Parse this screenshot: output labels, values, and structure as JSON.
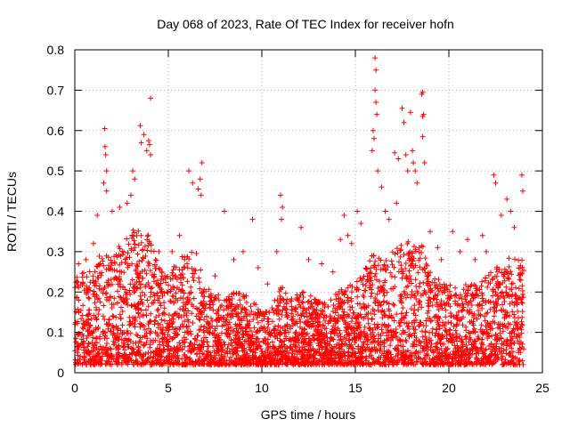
{
  "chart_data": {
    "type": "scatter",
    "title": "Day 068 of 2023, Rate Of TEC Index for receiver hofn",
    "xlabel": "GPS time / hours",
    "ylabel": "ROTI / TECUs",
    "xlim": [
      0,
      25
    ],
    "ylim": [
      0,
      0.8
    ],
    "x_ticks": [
      0,
      5,
      10,
      15,
      20,
      25
    ],
    "x_tick_labels": [
      "0",
      "5",
      "10",
      "15",
      "20",
      "25"
    ],
    "y_ticks": [
      0,
      0.1,
      0.2,
      0.3,
      0.4,
      0.5,
      0.6,
      0.7,
      0.8
    ],
    "y_tick_labels": [
      "0",
      "0.1",
      "0.2",
      "0.3",
      "0.4",
      "0.5",
      "0.6",
      "0.7",
      "0.8"
    ],
    "grid": true,
    "marker": "+",
    "color": "#ff0000",
    "points": [
      [
        1.6,
        0.605
      ],
      [
        1.62,
        0.56
      ],
      [
        1.65,
        0.54
      ],
      [
        1.7,
        0.5
      ],
      [
        1.55,
        0.47
      ],
      [
        1.7,
        0.45
      ],
      [
        3.5,
        0.612
      ],
      [
        3.7,
        0.59
      ],
      [
        3.55,
        0.57
      ],
      [
        3.85,
        0.55
      ],
      [
        3.95,
        0.575
      ],
      [
        4.05,
        0.68
      ],
      [
        4.0,
        0.565
      ],
      [
        4.05,
        0.54
      ],
      [
        3.1,
        0.5
      ],
      [
        3.2,
        0.48
      ],
      [
        3.0,
        0.44
      ],
      [
        6.1,
        0.5
      ],
      [
        6.3,
        0.47
      ],
      [
        6.6,
        0.455
      ],
      [
        6.7,
        0.48
      ],
      [
        6.8,
        0.52
      ],
      [
        6.75,
        0.44
      ],
      [
        8.0,
        0.4
      ],
      [
        9.5,
        0.38
      ],
      [
        11.0,
        0.44
      ],
      [
        11.1,
        0.41
      ],
      [
        11.05,
        0.38
      ],
      [
        12.1,
        0.36
      ],
      [
        13.2,
        0.27
      ],
      [
        14.4,
        0.39
      ],
      [
        14.6,
        0.34
      ],
      [
        15.1,
        0.4
      ],
      [
        15.3,
        0.37
      ],
      [
        15.9,
        0.55
      ],
      [
        15.95,
        0.6
      ],
      [
        16.0,
        0.58
      ],
      [
        16.05,
        0.78
      ],
      [
        16.1,
        0.75
      ],
      [
        16.05,
        0.7
      ],
      [
        16.1,
        0.67
      ],
      [
        16.15,
        0.64
      ],
      [
        16.2,
        0.5
      ],
      [
        16.4,
        0.46
      ],
      [
        16.6,
        0.4
      ],
      [
        17.1,
        0.545
      ],
      [
        17.3,
        0.53
      ],
      [
        17.5,
        0.655
      ],
      [
        17.6,
        0.62
      ],
      [
        17.7,
        0.54
      ],
      [
        17.8,
        0.5
      ],
      [
        17.95,
        0.645
      ],
      [
        18.05,
        0.55
      ],
      [
        18.1,
        0.52
      ],
      [
        18.2,
        0.5
      ],
      [
        18.3,
        0.47
      ],
      [
        18.55,
        0.69
      ],
      [
        18.6,
        0.695
      ],
      [
        18.6,
        0.635
      ],
      [
        18.65,
        0.64
      ],
      [
        18.6,
        0.585
      ],
      [
        18.7,
        0.52
      ],
      [
        19.0,
        0.35
      ],
      [
        19.4,
        0.31
      ],
      [
        20.2,
        0.35
      ],
      [
        21.0,
        0.33
      ],
      [
        21.8,
        0.34
      ],
      [
        22.4,
        0.49
      ],
      [
        22.5,
        0.47
      ],
      [
        23.1,
        0.43
      ],
      [
        23.3,
        0.4
      ],
      [
        23.9,
        0.49
      ],
      [
        23.95,
        0.45
      ],
      [
        0.2,
        0.27
      ],
      [
        0.6,
        0.28
      ],
      [
        1.0,
        0.32
      ],
      [
        1.2,
        0.39
      ],
      [
        2.0,
        0.4
      ],
      [
        2.4,
        0.41
      ],
      [
        2.8,
        0.42
      ],
      [
        4.5,
        0.3
      ],
      [
        5.2,
        0.3
      ],
      [
        5.6,
        0.34
      ],
      [
        7.5,
        0.24
      ],
      [
        8.5,
        0.28
      ],
      [
        9.0,
        0.3
      ],
      [
        9.8,
        0.26
      ],
      [
        10.3,
        0.22
      ],
      [
        10.8,
        0.3
      ],
      [
        12.5,
        0.28
      ],
      [
        13.8,
        0.25
      ],
      [
        14.2,
        0.33
      ],
      [
        14.8,
        0.32
      ],
      [
        16.8,
        0.38
      ],
      [
        17.2,
        0.42
      ],
      [
        19.6,
        0.28
      ],
      [
        20.6,
        0.3
      ],
      [
        21.4,
        0.28
      ],
      [
        22.0,
        0.3
      ],
      [
        22.8,
        0.39
      ],
      [
        23.5,
        0.36
      ]
    ],
    "dense_envelope": [
      [
        0.0,
        0.23
      ],
      [
        0.5,
        0.26
      ],
      [
        1.0,
        0.27
      ],
      [
        1.5,
        0.3
      ],
      [
        2.0,
        0.3
      ],
      [
        2.5,
        0.32
      ],
      [
        3.0,
        0.36
      ],
      [
        3.5,
        0.35
      ],
      [
        4.0,
        0.34
      ],
      [
        4.5,
        0.26
      ],
      [
        5.0,
        0.24
      ],
      [
        5.5,
        0.28
      ],
      [
        6.0,
        0.3
      ],
      [
        6.5,
        0.3
      ],
      [
        7.0,
        0.22
      ],
      [
        7.5,
        0.2
      ],
      [
        8.0,
        0.18
      ],
      [
        8.5,
        0.2
      ],
      [
        9.0,
        0.2
      ],
      [
        9.5,
        0.18
      ],
      [
        10.0,
        0.15
      ],
      [
        10.5,
        0.16
      ],
      [
        11.0,
        0.22
      ],
      [
        11.5,
        0.18
      ],
      [
        12.0,
        0.2
      ],
      [
        12.5,
        0.2
      ],
      [
        13.0,
        0.18
      ],
      [
        13.5,
        0.17
      ],
      [
        14.0,
        0.2
      ],
      [
        14.5,
        0.22
      ],
      [
        15.0,
        0.22
      ],
      [
        15.5,
        0.26
      ],
      [
        16.0,
        0.3
      ],
      [
        16.5,
        0.28
      ],
      [
        17.0,
        0.3
      ],
      [
        17.5,
        0.32
      ],
      [
        18.0,
        0.33
      ],
      [
        18.5,
        0.33
      ],
      [
        19.0,
        0.26
      ],
      [
        19.5,
        0.24
      ],
      [
        20.0,
        0.22
      ],
      [
        20.5,
        0.22
      ],
      [
        21.0,
        0.22
      ],
      [
        21.5,
        0.22
      ],
      [
        22.0,
        0.24
      ],
      [
        22.5,
        0.26
      ],
      [
        23.0,
        0.28
      ],
      [
        23.5,
        0.3
      ],
      [
        24.0,
        0.28
      ]
    ],
    "baseline_min": 0.02,
    "x_end": 24.0
  }
}
